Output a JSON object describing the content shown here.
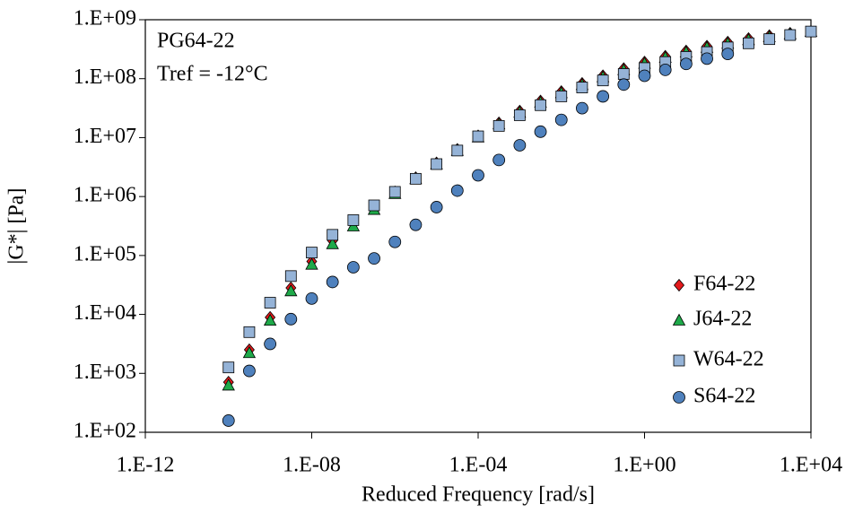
{
  "chart_data": {
    "type": "scatter",
    "xlabel": "Reduced Frequency [rad/s]",
    "ylabel": "|G*| [Pa]",
    "annotations": [
      "PG64-22",
      "Tref = -12°C"
    ],
    "xscale": "log",
    "yscale": "log",
    "legend": "lower right",
    "xlim": [
      1e-12,
      10000.0
    ],
    "ylim": [
      100,
      1000000000.0
    ],
    "xticks": [
      {
        "value": 1e-12,
        "label": "1.E-12"
      },
      {
        "value": 1e-08,
        "label": "1.E-08"
      },
      {
        "value": 0.0001,
        "label": "1.E-04"
      },
      {
        "value": 1,
        "label": "1.E+00"
      },
      {
        "value": 10000.0,
        "label": "1.E+04"
      }
    ],
    "yticks": [
      {
        "value": 100,
        "label": "1.E+02"
      },
      {
        "value": 1000,
        "label": "1.E+03"
      },
      {
        "value": 10000,
        "label": "1.E+04"
      },
      {
        "value": 100000,
        "label": "1.E+05"
      },
      {
        "value": 1000000,
        "label": "1.E+06"
      },
      {
        "value": 10000000,
        "label": "1.E+07"
      },
      {
        "value": 100000000,
        "label": "1.E+08"
      },
      {
        "value": 1000000000,
        "label": "1.E+09"
      }
    ],
    "series": [
      {
        "name": "F64-22",
        "color": "#e31a1c",
        "marker": "diamond",
        "x": [
          1e-10,
          3.16e-10,
          1e-09,
          3.16e-09,
          1e-08,
          3.16e-08,
          1e-07,
          3.16e-07,
          1e-06,
          3.16e-06,
          1e-05,
          3.16e-05,
          0.0001,
          0.000316,
          0.001,
          0.00316,
          0.01,
          0.0316,
          0.1,
          0.316,
          1,
          3.16,
          10,
          31.6,
          100,
          316,
          1000,
          3160,
          10000
        ],
        "values": [
          708.0,
          2510.0,
          8910.0,
          28200.0,
          79400.0,
          178000.0,
          355000.0,
          661000.0,
          1200000.0,
          2090000.0,
          3720000.0,
          6310000.0,
          10700000.0,
          17800000.0,
          28200000.0,
          41700000.0,
          60300000.0,
          83200000.0,
          112000000.0,
          148000000.0,
          191000000.0,
          240000000.0,
          295000000.0,
          355000000.0,
          417000000.0,
          479000000.0,
          537000000.0,
          589000000.0,
          631000000.0
        ]
      },
      {
        "name": "J64-22",
        "color": "#1faa4a",
        "marker": "triangle",
        "x": [
          1e-10,
          3.16e-10,
          1e-09,
          3.16e-09,
          1e-08,
          3.16e-08,
          1e-07,
          3.16e-07,
          1e-06,
          3.16e-06,
          1e-05,
          3.16e-05,
          0.0001,
          0.000316,
          0.001,
          0.00316,
          0.01,
          0.0316,
          0.1,
          0.316,
          1,
          3.16,
          10,
          31.6,
          100,
          316,
          1000,
          3160,
          10000
        ],
        "values": [
          631.0,
          2240.0,
          7940.0,
          25100.0,
          70800.0,
          158000.0,
          316000.0,
          603000.0,
          1120000.0,
          2000000.0,
          3550000.0,
          6030000.0,
          10200000.0,
          17000000.0,
          26900000.0,
          39800000.0,
          57500000.0,
          79400000.0,
          107000000.0,
          141000000.0,
          182000000.0,
          229000000.0,
          282000000.0,
          339000000.0,
          398000000.0,
          457000000.0,
          513000000.0,
          575000000.0,
          631000000.0
        ]
      },
      {
        "name": "W64-22",
        "color": "#95b3d7",
        "marker": "square",
        "x": [
          1e-10,
          3.16e-10,
          1e-09,
          3.16e-09,
          1e-08,
          3.16e-08,
          1e-07,
          3.16e-07,
          1e-06,
          3.16e-06,
          1e-05,
          3.16e-05,
          0.0001,
          0.000316,
          0.001,
          0.00316,
          0.01,
          0.0316,
          0.1,
          0.316,
          1,
          3.16,
          10,
          31.6,
          100,
          316,
          1000,
          3160,
          10000
        ],
        "values": [
          1260.0,
          5010.0,
          15800.0,
          44700.0,
          112000.0,
          224000.0,
          398000.0,
          708000.0,
          1200000.0,
          2000000.0,
          3550000.0,
          6030000.0,
          10500000.0,
          15800000.0,
          24000000.0,
          35500000.0,
          50100000.0,
          70800000.0,
          93300000.0,
          120000000.0,
          151000000.0,
          191000000.0,
          234000000.0,
          282000000.0,
          339000000.0,
          398000000.0,
          468000000.0,
          550000000.0,
          631000000.0
        ]
      },
      {
        "name": "S64-22",
        "color": "#4f81bd",
        "marker": "circle",
        "x": [
          1e-10,
          3.16e-10,
          1e-09,
          3.16e-09,
          1e-08,
          3.16e-08,
          1e-07,
          3.16e-07,
          1e-06,
          3.16e-06,
          1e-05,
          3.16e-05,
          0.0001,
          0.000316,
          0.001,
          0.00316,
          0.01,
          0.0316,
          0.1,
          0.316,
          1,
          3.16,
          10,
          31.6,
          100
        ],
        "values": [
          158.0,
          1100.0,
          3160.0,
          8320.0,
          18600.0,
          35500.0,
          63100.0,
          89100.0,
          170000.0,
          331000.0,
          661000.0,
          1260000.0,
          2290000.0,
          4170000.0,
          7410000.0,
          12600000.0,
          20000000.0,
          31600000.0,
          50100000.0,
          79400000.0,
          112000000.0,
          141000000.0,
          178000000.0,
          219000000.0,
          263000000.0
        ]
      }
    ]
  }
}
